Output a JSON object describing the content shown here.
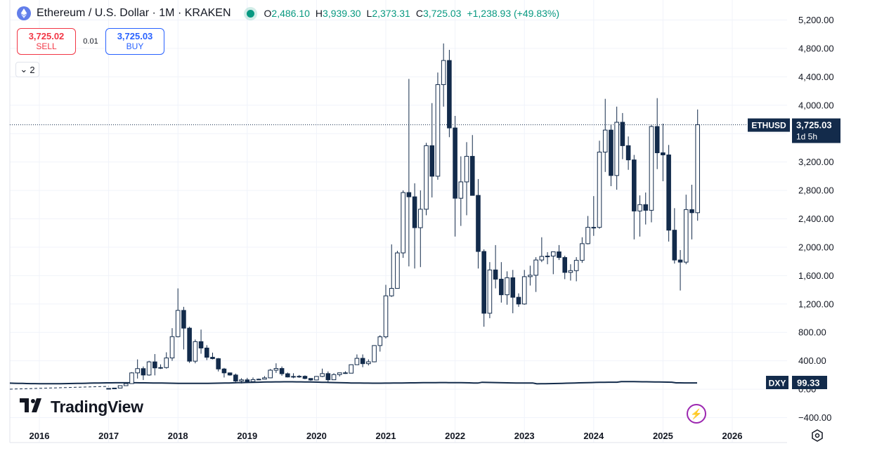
{
  "legend": {
    "title": "Ethereum / U.S. Dollar · 1M · KRAKEN",
    "ohlc": [
      {
        "key": "O",
        "value": "2,486.10"
      },
      {
        "key": "H",
        "value": "3,939.30"
      },
      {
        "key": "L",
        "value": "2,373.31"
      },
      {
        "key": "C",
        "value": "3,725.03"
      }
    ],
    "change": "+1,238.93 (+49.83%)"
  },
  "trade": {
    "sell_price": "3,725.02",
    "sell_label": "SELL",
    "spread": "0.01",
    "buy_price": "3,725.03",
    "buy_label": "BUY"
  },
  "indicator_collapse": {
    "count": "2"
  },
  "brand": {
    "name": "TradingView"
  },
  "icons": {
    "logo": "ethereum-icon",
    "replay": "replay-icon",
    "settings": "settings-icon"
  },
  "colors": {
    "candle": "#132b4b",
    "grid": "#f0f3fa",
    "dxy_line": "#132b4b",
    "up_text": "#089981"
  },
  "chart_data": {
    "type": "candlestick",
    "symbol": "ETHUSD",
    "ylim": [
      -400,
      5200
    ],
    "y_ticks": [
      "5,200.00",
      "4,800.00",
      "4,400.00",
      "4,000.00",
      "3,600.00",
      "3,200.00",
      "2,800.00",
      "2,400.00",
      "2,000.00",
      "1,600.00",
      "1,200.00",
      "800.00",
      "400.00",
      "0.00",
      "−400.00"
    ],
    "x_ticks": [
      "2016",
      "2017",
      "2018",
      "2019",
      "2020",
      "2021",
      "2022",
      "2023",
      "2024",
      "2025",
      "2026"
    ],
    "last_price_label": {
      "symbol": "ETHUSD",
      "price": "3,725.03",
      "countdown": "1d 5h",
      "value": 3725.03
    },
    "overlay": {
      "symbol": "DXY",
      "value_label": "99.33",
      "value": 99.33
    },
    "candles": [
      {
        "t": "2017-01",
        "o": 8,
        "h": 12,
        "l": 8,
        "c": 11
      },
      {
        "t": "2017-02",
        "o": 11,
        "h": 17,
        "l": 10,
        "c": 16
      },
      {
        "t": "2017-03",
        "o": 16,
        "h": 55,
        "l": 15,
        "c": 50
      },
      {
        "t": "2017-04",
        "o": 50,
        "h": 82,
        "l": 45,
        "c": 79
      },
      {
        "t": "2017-05",
        "o": 79,
        "h": 240,
        "l": 75,
        "c": 230
      },
      {
        "t": "2017-06",
        "o": 230,
        "h": 420,
        "l": 150,
        "c": 290
      },
      {
        "t": "2017-07",
        "o": 290,
        "h": 320,
        "l": 130,
        "c": 200
      },
      {
        "t": "2017-08",
        "o": 200,
        "h": 400,
        "l": 190,
        "c": 385
      },
      {
        "t": "2017-09",
        "o": 385,
        "h": 495,
        "l": 195,
        "c": 300
      },
      {
        "t": "2017-10",
        "o": 300,
        "h": 350,
        "l": 285,
        "c": 305
      },
      {
        "t": "2017-11",
        "o": 305,
        "h": 520,
        "l": 290,
        "c": 440
      },
      {
        "t": "2017-12",
        "o": 440,
        "h": 860,
        "l": 400,
        "c": 740
      },
      {
        "t": "2018-01",
        "o": 740,
        "h": 1420,
        "l": 730,
        "c": 1110
      },
      {
        "t": "2018-02",
        "o": 1110,
        "h": 1160,
        "l": 560,
        "c": 860
      },
      {
        "t": "2018-03",
        "o": 860,
        "h": 880,
        "l": 370,
        "c": 395
      },
      {
        "t": "2018-04",
        "o": 395,
        "h": 700,
        "l": 365,
        "c": 670
      },
      {
        "t": "2018-05",
        "o": 670,
        "h": 840,
        "l": 500,
        "c": 580
      },
      {
        "t": "2018-06",
        "o": 580,
        "h": 620,
        "l": 410,
        "c": 450
      },
      {
        "t": "2018-07",
        "o": 450,
        "h": 515,
        "l": 420,
        "c": 430
      },
      {
        "t": "2018-08",
        "o": 430,
        "h": 440,
        "l": 250,
        "c": 285
      },
      {
        "t": "2018-09",
        "o": 285,
        "h": 300,
        "l": 165,
        "c": 230
      },
      {
        "t": "2018-10",
        "o": 230,
        "h": 235,
        "l": 190,
        "c": 200
      },
      {
        "t": "2018-11",
        "o": 200,
        "h": 220,
        "l": 100,
        "c": 115
      },
      {
        "t": "2018-12",
        "o": 115,
        "h": 155,
        "l": 82,
        "c": 132
      },
      {
        "t": "2019-01",
        "o": 132,
        "h": 160,
        "l": 100,
        "c": 107
      },
      {
        "t": "2019-02",
        "o": 107,
        "h": 165,
        "l": 102,
        "c": 135
      },
      {
        "t": "2019-03",
        "o": 135,
        "h": 150,
        "l": 130,
        "c": 141
      },
      {
        "t": "2019-04",
        "o": 141,
        "h": 185,
        "l": 140,
        "c": 160
      },
      {
        "t": "2019-05",
        "o": 160,
        "h": 285,
        "l": 155,
        "c": 268
      },
      {
        "t": "2019-06",
        "o": 268,
        "h": 365,
        "l": 230,
        "c": 292
      },
      {
        "t": "2019-07",
        "o": 292,
        "h": 320,
        "l": 190,
        "c": 218
      },
      {
        "t": "2019-08",
        "o": 218,
        "h": 235,
        "l": 165,
        "c": 172
      },
      {
        "t": "2019-09",
        "o": 172,
        "h": 225,
        "l": 155,
        "c": 180
      },
      {
        "t": "2019-10",
        "o": 180,
        "h": 200,
        "l": 160,
        "c": 182
      },
      {
        "t": "2019-11",
        "o": 182,
        "h": 195,
        "l": 140,
        "c": 151
      },
      {
        "t": "2019-12",
        "o": 151,
        "h": 155,
        "l": 118,
        "c": 130
      },
      {
        "t": "2020-01",
        "o": 130,
        "h": 185,
        "l": 125,
        "c": 180
      },
      {
        "t": "2020-02",
        "o": 180,
        "h": 290,
        "l": 170,
        "c": 220
      },
      {
        "t": "2020-03",
        "o": 220,
        "h": 250,
        "l": 90,
        "c": 133
      },
      {
        "t": "2020-04",
        "o": 133,
        "h": 225,
        "l": 130,
        "c": 206
      },
      {
        "t": "2020-05",
        "o": 206,
        "h": 225,
        "l": 180,
        "c": 231
      },
      {
        "t": "2020-06",
        "o": 231,
        "h": 253,
        "l": 216,
        "c": 226
      },
      {
        "t": "2020-07",
        "o": 226,
        "h": 350,
        "l": 225,
        "c": 345
      },
      {
        "t": "2020-08",
        "o": 345,
        "h": 490,
        "l": 345,
        "c": 435
      },
      {
        "t": "2020-09",
        "o": 435,
        "h": 490,
        "l": 310,
        "c": 360
      },
      {
        "t": "2020-10",
        "o": 360,
        "h": 420,
        "l": 335,
        "c": 386
      },
      {
        "t": "2020-11",
        "o": 386,
        "h": 620,
        "l": 380,
        "c": 615
      },
      {
        "t": "2020-12",
        "o": 615,
        "h": 760,
        "l": 530,
        "c": 738
      },
      {
        "t": "2021-01",
        "o": 738,
        "h": 1470,
        "l": 715,
        "c": 1315
      },
      {
        "t": "2021-02",
        "o": 1315,
        "h": 2040,
        "l": 1300,
        "c": 1420
      },
      {
        "t": "2021-03",
        "o": 1420,
        "h": 1950,
        "l": 1430,
        "c": 1920
      },
      {
        "t": "2021-04",
        "o": 1920,
        "h": 2800,
        "l": 1850,
        "c": 2770
      },
      {
        "t": "2021-05",
        "o": 2770,
        "h": 4370,
        "l": 1730,
        "c": 2710
      },
      {
        "t": "2021-06",
        "o": 2710,
        "h": 2900,
        "l": 1700,
        "c": 2275
      },
      {
        "t": "2021-07",
        "o": 2275,
        "h": 2800,
        "l": 1720,
        "c": 2535
      },
      {
        "t": "2021-08",
        "o": 2535,
        "h": 3470,
        "l": 2450,
        "c": 3430
      },
      {
        "t": "2021-09",
        "o": 3430,
        "h": 4030,
        "l": 2700,
        "c": 3000
      },
      {
        "t": "2021-10",
        "o": 3000,
        "h": 4460,
        "l": 2950,
        "c": 4290
      },
      {
        "t": "2021-11",
        "o": 4290,
        "h": 4870,
        "l": 3980,
        "c": 4630
      },
      {
        "t": "2021-12",
        "o": 4630,
        "h": 4780,
        "l": 3550,
        "c": 3680
      },
      {
        "t": "2022-01",
        "o": 3680,
        "h": 3850,
        "l": 2150,
        "c": 2690
      },
      {
        "t": "2022-02",
        "o": 2690,
        "h": 3280,
        "l": 2300,
        "c": 2920
      },
      {
        "t": "2022-03",
        "o": 2920,
        "h": 3480,
        "l": 2450,
        "c": 3280
      },
      {
        "t": "2022-04",
        "o": 3280,
        "h": 3580,
        "l": 2780,
        "c": 2730
      },
      {
        "t": "2022-05",
        "o": 2730,
        "h": 2960,
        "l": 1700,
        "c": 1940
      },
      {
        "t": "2022-06",
        "o": 1940,
        "h": 1970,
        "l": 880,
        "c": 1070
      },
      {
        "t": "2022-07",
        "o": 1070,
        "h": 1790,
        "l": 1000,
        "c": 1680
      },
      {
        "t": "2022-08",
        "o": 1680,
        "h": 2030,
        "l": 1420,
        "c": 1550
      },
      {
        "t": "2022-09",
        "o": 1550,
        "h": 1790,
        "l": 1220,
        "c": 1330
      },
      {
        "t": "2022-10",
        "o": 1330,
        "h": 1660,
        "l": 1190,
        "c": 1570
      },
      {
        "t": "2022-11",
        "o": 1570,
        "h": 1680,
        "l": 1070,
        "c": 1295
      },
      {
        "t": "2022-12",
        "o": 1295,
        "h": 1350,
        "l": 1160,
        "c": 1200
      },
      {
        "t": "2023-01",
        "o": 1200,
        "h": 1680,
        "l": 1190,
        "c": 1585
      },
      {
        "t": "2023-02",
        "o": 1585,
        "h": 1740,
        "l": 1460,
        "c": 1605
      },
      {
        "t": "2023-03",
        "o": 1605,
        "h": 1860,
        "l": 1370,
        "c": 1820
      },
      {
        "t": "2023-04",
        "o": 1820,
        "h": 2140,
        "l": 1790,
        "c": 1870
      },
      {
        "t": "2023-05",
        "o": 1870,
        "h": 1930,
        "l": 1760,
        "c": 1875
      },
      {
        "t": "2023-06",
        "o": 1875,
        "h": 1930,
        "l": 1620,
        "c": 1935
      },
      {
        "t": "2023-07",
        "o": 1935,
        "h": 2030,
        "l": 1820,
        "c": 1855
      },
      {
        "t": "2023-08",
        "o": 1855,
        "h": 1880,
        "l": 1550,
        "c": 1645
      },
      {
        "t": "2023-09",
        "o": 1645,
        "h": 1760,
        "l": 1530,
        "c": 1670
      },
      {
        "t": "2023-10",
        "o": 1670,
        "h": 1860,
        "l": 1520,
        "c": 1815
      },
      {
        "t": "2023-11",
        "o": 1815,
        "h": 2140,
        "l": 1780,
        "c": 2050
      },
      {
        "t": "2023-12",
        "o": 2050,
        "h": 2440,
        "l": 2040,
        "c": 2280
      },
      {
        "t": "2024-01",
        "o": 2280,
        "h": 2720,
        "l": 2160,
        "c": 2280
      },
      {
        "t": "2024-02",
        "o": 2280,
        "h": 3500,
        "l": 2260,
        "c": 3340
      },
      {
        "t": "2024-03",
        "o": 3340,
        "h": 4090,
        "l": 3060,
        "c": 3650
      },
      {
        "t": "2024-04",
        "o": 3650,
        "h": 3730,
        "l": 2860,
        "c": 3010
      },
      {
        "t": "2024-05",
        "o": 3010,
        "h": 3980,
        "l": 2810,
        "c": 3760
      },
      {
        "t": "2024-06",
        "o": 3760,
        "h": 3890,
        "l": 3240,
        "c": 3430
      },
      {
        "t": "2024-07",
        "o": 3430,
        "h": 3560,
        "l": 3090,
        "c": 3230
      },
      {
        "t": "2024-08",
        "o": 3230,
        "h": 3300,
        "l": 2110,
        "c": 2510
      },
      {
        "t": "2024-09",
        "o": 2510,
        "h": 2730,
        "l": 2150,
        "c": 2600
      },
      {
        "t": "2024-10",
        "o": 2600,
        "h": 2770,
        "l": 2320,
        "c": 2520
      },
      {
        "t": "2024-11",
        "o": 2520,
        "h": 3720,
        "l": 2350,
        "c": 3700
      },
      {
        "t": "2024-12",
        "o": 3700,
        "h": 4100,
        "l": 3100,
        "c": 3330
      },
      {
        "t": "2025-01",
        "o": 3330,
        "h": 3740,
        "l": 2930,
        "c": 3300
      },
      {
        "t": "2025-02",
        "o": 3300,
        "h": 3440,
        "l": 2080,
        "c": 2240
      },
      {
        "t": "2025-03",
        "o": 2240,
        "h": 2550,
        "l": 1770,
        "c": 1820
      },
      {
        "t": "2025-04",
        "o": 1820,
        "h": 1960,
        "l": 1390,
        "c": 1790
      },
      {
        "t": "2025-05",
        "o": 1790,
        "h": 2740,
        "l": 1760,
        "c": 2530
      },
      {
        "t": "2025-06",
        "o": 2530,
        "h": 2880,
        "l": 2110,
        "c": 2486
      },
      {
        "t": "2025-07",
        "o": 2486.1,
        "h": 3939.3,
        "l": 2373.31,
        "c": 3725.03
      }
    ]
  }
}
